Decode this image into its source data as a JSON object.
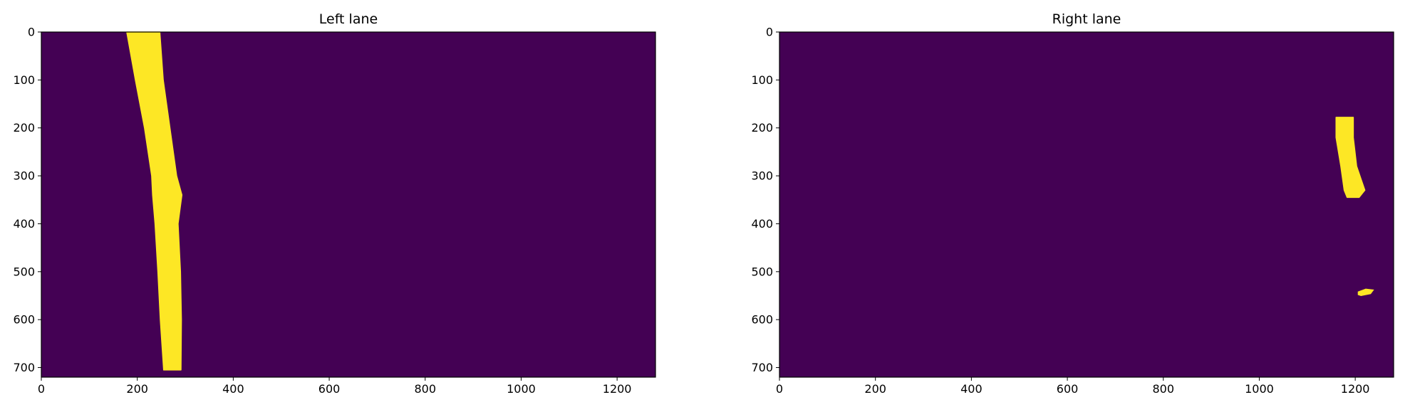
{
  "colors": {
    "background": "#440154",
    "foreground": "#fde725",
    "axis": "#000000"
  },
  "chart_data": [
    {
      "type": "heatmap",
      "title": "Left lane",
      "colormap": "viridis (binary mask)",
      "xlim": [
        0,
        1280
      ],
      "ylim": [
        720,
        0
      ],
      "x_ticks": [
        "0",
        "200",
        "400",
        "600",
        "800",
        "1000",
        "1200"
      ],
      "y_ticks": [
        "0",
        "100",
        "200",
        "300",
        "400",
        "500",
        "600",
        "700"
      ],
      "lane_pixels": [
        {
          "y": 0,
          "x_min": 178,
          "x_max": 247
        },
        {
          "y": 100,
          "x_min": 196,
          "x_max": 254
        },
        {
          "y": 200,
          "x_min": 215,
          "x_max": 268
        },
        {
          "y": 300,
          "x_min": 230,
          "x_max": 282
        },
        {
          "y": 340,
          "x_min": 232,
          "x_max": 293
        },
        {
          "y": 400,
          "x_min": 237,
          "x_max": 285
        },
        {
          "y": 500,
          "x_min": 243,
          "x_max": 290
        },
        {
          "y": 600,
          "x_min": 248,
          "x_max": 292
        },
        {
          "y": 705,
          "x_min": 255,
          "x_max": 291
        }
      ],
      "blobs": []
    },
    {
      "type": "heatmap",
      "title": "Right lane",
      "colormap": "viridis (binary mask)",
      "xlim": [
        0,
        1280
      ],
      "ylim": [
        720,
        0
      ],
      "x_ticks": [
        "0",
        "200",
        "400",
        "600",
        "800",
        "1000",
        "1200"
      ],
      "y_ticks": [
        "0",
        "100",
        "200",
        "300",
        "400",
        "500",
        "600",
        "700"
      ],
      "lane_pixels": [
        {
          "y": 178,
          "x_min": 1160,
          "x_max": 1196
        },
        {
          "y": 220,
          "x_min": 1160,
          "x_max": 1196
        },
        {
          "y": 280,
          "x_min": 1170,
          "x_max": 1203
        },
        {
          "y": 330,
          "x_min": 1177,
          "x_max": 1220
        },
        {
          "y": 345,
          "x_min": 1183,
          "x_max": 1208
        }
      ],
      "blobs": [
        {
          "points": [
            [
              1206,
              542
            ],
            [
              1222,
              536
            ],
            [
              1238,
              538
            ],
            [
              1232,
              546
            ],
            [
              1212,
              550
            ],
            [
              1206,
              548
            ]
          ]
        }
      ]
    }
  ]
}
